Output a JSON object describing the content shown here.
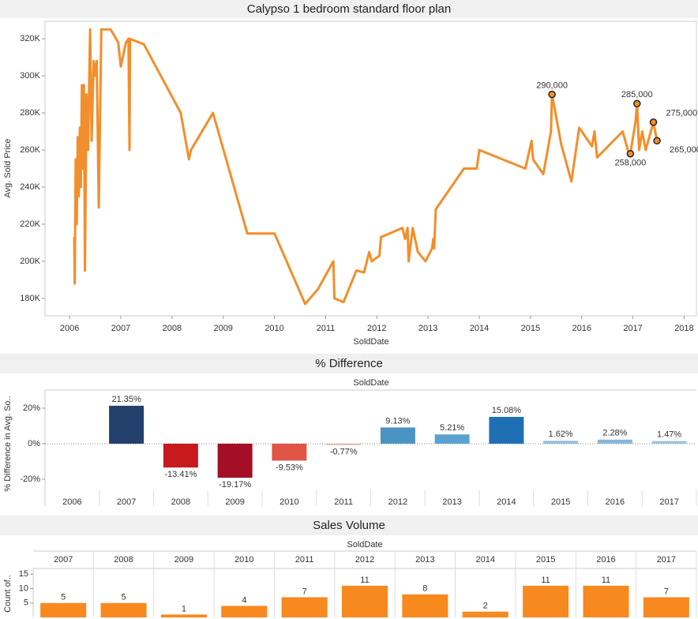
{
  "chart_data": [
    {
      "type": "line",
      "title": "Calypso 1 bedroom standard floor plan",
      "xlabel": "SoldDate",
      "ylabel": "Avg. Sold Price",
      "color": "#f28e2b",
      "x": [
        2006.09,
        2006.1,
        2006.12,
        2006.14,
        2006.16,
        2006.18,
        2006.2,
        2006.22,
        2006.24,
        2006.26,
        2006.28,
        2006.3,
        2006.33,
        2006.36,
        2006.4,
        2006.43,
        2006.47,
        2006.5,
        2006.53,
        2006.57,
        2006.62,
        2006.8,
        2006.95,
        2007.0,
        2007.1,
        2007.15,
        2007.17,
        2007.18,
        2007.45,
        2008.17,
        2008.33,
        2008.37,
        2008.8,
        2009.47,
        2010.0,
        2010.6,
        2010.85,
        2011.15,
        2011.17,
        2011.35,
        2011.6,
        2011.75,
        2011.85,
        2011.9,
        2012.05,
        2012.08,
        2012.5,
        2012.55,
        2012.6,
        2012.62,
        2012.7,
        2012.8,
        2012.95,
        2013.08,
        2013.1,
        2013.12,
        2013.15,
        2013.7,
        2013.95,
        2014.0,
        2014.9,
        2015.02,
        2015.05,
        2015.25,
        2015.4,
        2015.42,
        2015.6,
        2015.8,
        2015.95,
        2016.2,
        2016.25,
        2016.3,
        2016.8,
        2016.9,
        2016.95,
        2017.05,
        2017.08,
        2017.12,
        2017.18,
        2017.25,
        2017.3,
        2017.4,
        2017.47
      ],
      "values": [
        213000,
        188000,
        255000,
        220000,
        267000,
        235000,
        272000,
        240000,
        295000,
        250000,
        295000,
        195000,
        290000,
        260000,
        325000,
        265000,
        308000,
        300000,
        308000,
        229000,
        325000,
        325000,
        318000,
        305000,
        318000,
        320000,
        260000,
        320000,
        317000,
        280000,
        255000,
        260000,
        280000,
        215000,
        215000,
        177000,
        185000,
        200000,
        180000,
        178000,
        195000,
        194000,
        205000,
        200000,
        203000,
        213000,
        218000,
        212000,
        218000,
        200000,
        218000,
        205000,
        200000,
        207000,
        212000,
        207000,
        228000,
        250000,
        250000,
        260000,
        250000,
        265000,
        255000,
        247000,
        270000,
        290000,
        263000,
        243000,
        272000,
        262000,
        270000,
        256000,
        270000,
        260000,
        258000,
        275000,
        285000,
        260000,
        270000,
        260000,
        265000,
        275000,
        265000
      ],
      "annotations": [
        {
          "x": 2015.42,
          "y": 290000,
          "label": "290,000"
        },
        {
          "x": 2017.08,
          "y": 285000,
          "label": "285,000"
        },
        {
          "x": 2017.4,
          "y": 275000,
          "label": "275,000"
        },
        {
          "x": 2016.95,
          "y": 258000,
          "label": "258,000"
        },
        {
          "x": 2017.47,
          "y": 265000,
          "label": "265,000"
        }
      ],
      "xlim": [
        2005.52,
        2018.24
      ],
      "xticks": [
        2006,
        2007,
        2008,
        2009,
        2010,
        2011,
        2012,
        2013,
        2014,
        2015,
        2016,
        2017,
        2018
      ],
      "ylim": [
        170600,
        329400
      ],
      "yticks": [
        {
          "value": 180000,
          "label": "180K"
        },
        {
          "value": 200000,
          "label": "200K"
        },
        {
          "value": 220000,
          "label": "220K"
        },
        {
          "value": 240000,
          "label": "240K"
        },
        {
          "value": 260000,
          "label": "260K"
        },
        {
          "value": 280000,
          "label": "280K"
        },
        {
          "value": 300000,
          "label": "300K"
        },
        {
          "value": 320000,
          "label": "320K"
        }
      ]
    },
    {
      "type": "bar",
      "title": "% Difference",
      "header": "SoldDate",
      "ylabel": "% Difference in Avg. So..",
      "categories": [
        "2006",
        "2007",
        "2008",
        "2009",
        "2010",
        "2011",
        "2012",
        "2013",
        "2014",
        "2015",
        "2016",
        "2017"
      ],
      "values": [
        null,
        21.35,
        -13.41,
        -19.17,
        -9.53,
        -0.77,
        9.13,
        5.21,
        15.08,
        1.62,
        2.28,
        1.47
      ],
      "value_labels": [
        null,
        "21.35%",
        "-13.41%",
        "-19.17%",
        "-9.53%",
        "-0.77%",
        "9.13%",
        "5.21%",
        "15.08%",
        "1.62%",
        "2.28%",
        "1.47%"
      ],
      "colors": [
        null,
        "#23406c",
        "#c8191e",
        "#a50f25",
        "#e05546",
        "#e6b0a6",
        "#4a94c4",
        "#5aa3d1",
        "#1f6fb4",
        "#93bde0",
        "#8ab7d9",
        "#9cc3e0"
      ],
      "ylim": [
        -28.9,
        30.2
      ],
      "yticks": [
        {
          "value": -20,
          "label": "-20%"
        },
        {
          "value": 0,
          "label": "0%"
        },
        {
          "value": 20,
          "label": "20%"
        }
      ]
    },
    {
      "type": "column",
      "title": "Sales Volume",
      "header": "SoldDate",
      "ylabel": "Count of..",
      "color": "#f7891f",
      "categories": [
        "2007",
        "2008",
        "2009",
        "2010",
        "2011",
        "2012",
        "2013",
        "2014",
        "2015",
        "2016",
        "2017"
      ],
      "values": [
        5,
        5,
        1,
        4,
        7,
        11,
        8,
        2,
        11,
        11,
        7
      ],
      "ylim": [
        0,
        17
      ],
      "yticks": [
        5,
        10,
        15
      ]
    }
  ]
}
